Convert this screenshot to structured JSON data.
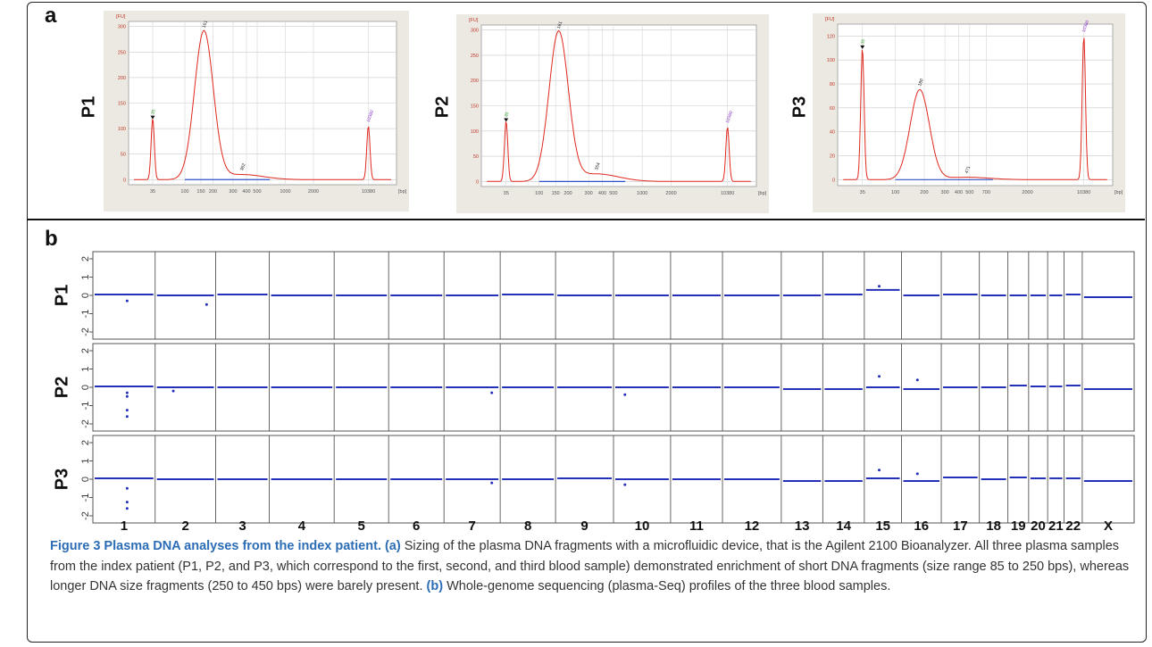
{
  "figure": {
    "panel_a_letter": "a",
    "panel_b_letter": "b",
    "caption": {
      "title": "Figure 3 Plasma DNA analyses from the index patient.",
      "part_a_tag": "(a)",
      "part_a_text": " Sizing of the plasma DNA fragments with a microfluidic device, that is the Agilent 2100 Bioanalyzer. All three plasma samples from the index patient (P1, P2, and P3, which correspond to the first, second, and third blood sample) demonstrated enrichment of short DNA fragments (size range 85 to 250 bps), whereas longer DNA size fragments (250 to 450 bps) were barely present. ",
      "part_b_tag": "(b)",
      "part_b_text": " Whole-genome sequencing (plasma-Seq) profiles of the three blood samples."
    }
  },
  "chart_data": [
    {
      "type": "line",
      "panel": "a",
      "row_label": "P1",
      "ylabel": "[FU]",
      "xlabel": "[bp]",
      "ylim": [
        -10,
        310
      ],
      "yticks": [
        0,
        50,
        100,
        150,
        200,
        250,
        300
      ],
      "x_tick_labels": [
        "35",
        "100",
        "150",
        "200",
        "300",
        "400",
        "500",
        "1000",
        "2000",
        "10380"
      ],
      "peaks": [
        {
          "label": "35",
          "size_bp": 35,
          "fu": 120
        },
        {
          "label": "161",
          "size_bp": 161,
          "fu": 290
        },
        {
          "label": "362",
          "size_bp": 362,
          "fu": 10
        },
        {
          "label": "10380",
          "size_bp": 10380,
          "fu": 105
        }
      ]
    },
    {
      "type": "line",
      "panel": "a",
      "row_label": "P2",
      "ylabel": "[FU]",
      "xlabel": "[bp]",
      "ylim": [
        -10,
        310
      ],
      "yticks": [
        0,
        50,
        100,
        150,
        200,
        250,
        300
      ],
      "x_tick_labels": [
        "35",
        "100",
        "150",
        "200",
        "300",
        "400",
        "500",
        "1000",
        "2000",
        "10380"
      ],
      "peaks": [
        {
          "label": "35",
          "size_bp": 35,
          "fu": 120
        },
        {
          "label": "161",
          "size_bp": 161,
          "fu": 295
        },
        {
          "label": "354",
          "size_bp": 354,
          "fu": 15
        },
        {
          "label": "10380",
          "size_bp": 10380,
          "fu": 108
        }
      ]
    },
    {
      "type": "line",
      "panel": "a",
      "row_label": "P3",
      "ylabel": "[FU]",
      "xlabel": "[bp]",
      "ylim": [
        -5,
        130
      ],
      "yticks": [
        0,
        20,
        40,
        60,
        80,
        100,
        120
      ],
      "x_tick_labels": [
        "35",
        "100",
        "200",
        "300",
        "400",
        "500",
        "700",
        "2000",
        "10380"
      ],
      "peaks": [
        {
          "label": "35",
          "size_bp": 35,
          "fu": 110
        },
        {
          "label": "180",
          "size_bp": 180,
          "fu": 75
        },
        {
          "label": "471",
          "size_bp": 471,
          "fu": 2
        },
        {
          "label": "10380",
          "size_bp": 10380,
          "fu": 120
        }
      ]
    },
    {
      "type": "scatter",
      "panel": "b",
      "chromosomes": [
        "1",
        "2",
        "3",
        "4",
        "5",
        "6",
        "7",
        "8",
        "9",
        "10",
        "11",
        "12",
        "13",
        "14",
        "15",
        "16",
        "17",
        "18",
        "19",
        "20",
        "21",
        "22",
        "X"
      ],
      "ylim": [
        -2,
        2
      ],
      "yticks": [
        "2",
        "1",
        "0",
        "-1",
        "-2"
      ],
      "rows": [
        {
          "label": "P1",
          "baseline": [
            0.05,
            0.0,
            0.05,
            0.0,
            0.0,
            0.0,
            0.0,
            0.05,
            0.0,
            0.0,
            0.0,
            0.0,
            0.0,
            0.05,
            0.3,
            0.0,
            0.05,
            0.0,
            0.0,
            0.0,
            0.0,
            0.05,
            -0.1
          ],
          "outliers": [
            {
              "chr": 1,
              "pos": 0.55,
              "v": -0.3
            },
            {
              "chr": 2,
              "pos": 0.85,
              "v": -0.5
            },
            {
              "chr": 15,
              "pos": 0.4,
              "v": 0.5
            }
          ]
        },
        {
          "label": "P2",
          "baseline": [
            0.05,
            0.0,
            0.0,
            0.0,
            0.0,
            0.0,
            0.0,
            0.0,
            0.0,
            0.0,
            0.0,
            0.0,
            -0.1,
            -0.1,
            0.0,
            -0.1,
            0.0,
            0.0,
            0.1,
            0.05,
            0.05,
            0.1,
            -0.1
          ],
          "outliers": [
            {
              "chr": 1,
              "pos": 0.55,
              "v": -1.6
            },
            {
              "chr": 1,
              "pos": 0.55,
              "v": -1.25
            },
            {
              "chr": 1,
              "pos": 0.55,
              "v": -0.5
            },
            {
              "chr": 1,
              "pos": 0.55,
              "v": -0.3
            },
            {
              "chr": 2,
              "pos": 0.3,
              "v": -0.2
            },
            {
              "chr": 7,
              "pos": 0.85,
              "v": -0.3
            },
            {
              "chr": 10,
              "pos": 0.2,
              "v": -0.4
            },
            {
              "chr": 15,
              "pos": 0.4,
              "v": 0.6
            },
            {
              "chr": 16,
              "pos": 0.4,
              "v": 0.4
            }
          ]
        },
        {
          "label": "P3",
          "baseline": [
            0.05,
            0.0,
            0.0,
            0.0,
            0.0,
            0.0,
            0.0,
            0.0,
            0.05,
            0.0,
            0.0,
            0.0,
            -0.1,
            -0.1,
            0.05,
            -0.1,
            0.1,
            0.0,
            0.1,
            0.05,
            0.05,
            0.05,
            -0.1
          ],
          "outliers": [
            {
              "chr": 1,
              "pos": 0.55,
              "v": -1.6
            },
            {
              "chr": 1,
              "pos": 0.55,
              "v": -1.25
            },
            {
              "chr": 1,
              "pos": 0.55,
              "v": -0.5
            },
            {
              "chr": 7,
              "pos": 0.85,
              "v": -0.2
            },
            {
              "chr": 10,
              "pos": 0.2,
              "v": -0.3
            },
            {
              "chr": 15,
              "pos": 0.4,
              "v": 0.5
            },
            {
              "chr": 16,
              "pos": 0.4,
              "v": 0.3
            }
          ]
        }
      ]
    }
  ]
}
